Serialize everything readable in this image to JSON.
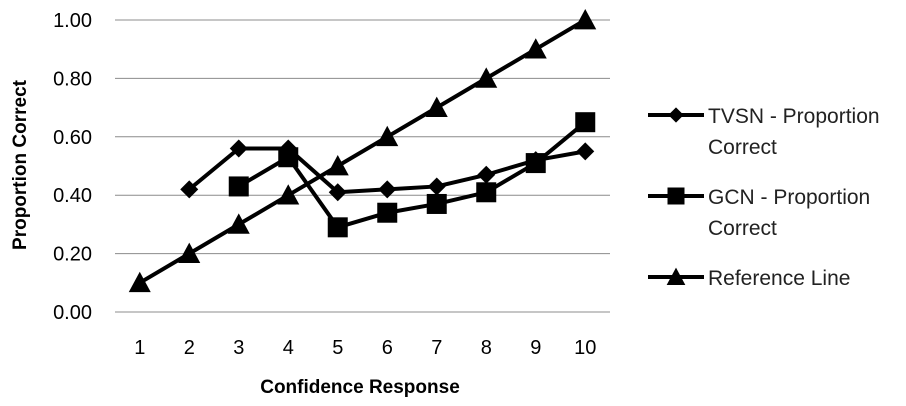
{
  "chart_data": {
    "type": "line",
    "x": [
      1,
      2,
      3,
      4,
      5,
      6,
      7,
      8,
      9,
      10
    ],
    "series": [
      {
        "name": "TVSN - Proportion Correct",
        "marker": "diamond",
        "values": [
          null,
          0.42,
          0.56,
          0.56,
          0.41,
          0.42,
          0.43,
          0.47,
          0.52,
          0.55
        ]
      },
      {
        "name": "GCN - Proportion Correct",
        "marker": "square",
        "values": [
          null,
          null,
          0.43,
          0.53,
          0.29,
          0.34,
          0.37,
          0.41,
          0.51,
          0.65
        ]
      },
      {
        "name": "Reference Line",
        "marker": "triangle",
        "values": [
          0.1,
          0.2,
          0.3,
          0.4,
          0.5,
          0.6,
          0.7,
          0.8,
          0.9,
          1.0
        ]
      }
    ],
    "legend_lines": [
      [
        "TVSN - Proportion",
        "Correct"
      ],
      [
        "GCN - Proportion",
        "Correct"
      ],
      [
        "Reference Line"
      ]
    ],
    "xlabel": "Confidence Response",
    "ylabel": "Proportion Correct",
    "ylim": [
      0,
      1
    ],
    "yticks": [
      "0.00",
      "0.20",
      "0.40",
      "0.60",
      "0.80",
      "1.00"
    ],
    "xticks": [
      "1",
      "2",
      "3",
      "4",
      "5",
      "6",
      "7",
      "8",
      "9",
      "10"
    ],
    "grid": true,
    "legend_position": "right"
  }
}
